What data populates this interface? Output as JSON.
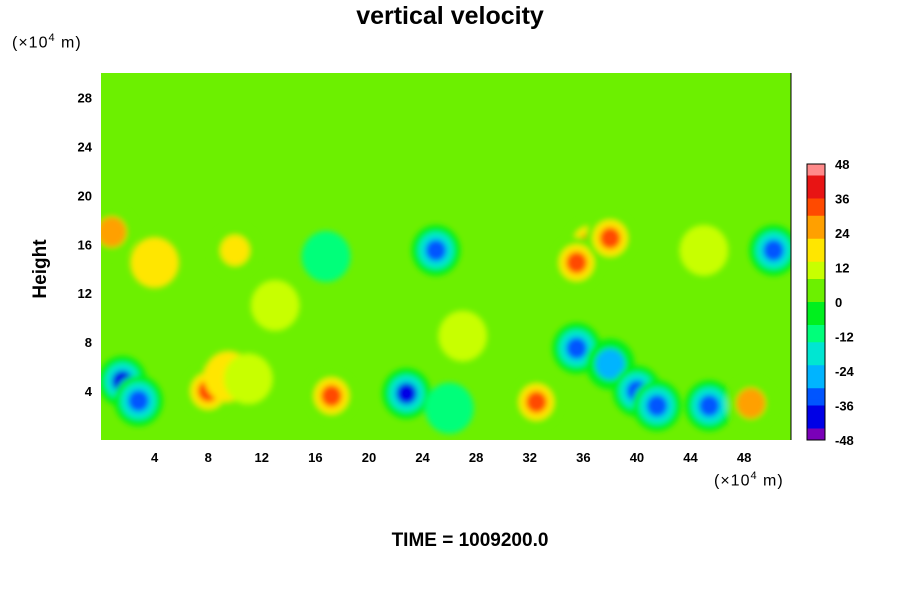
{
  "chart_data": {
    "type": "heatmap",
    "title": "vertical velocity",
    "ylabel": "Height",
    "y_unit_label": "(×10",
    "x_unit_label": "(×10",
    "unit_exp": "4",
    "unit_suffix": " m)",
    "xlim": [
      0,
      51.5
    ],
    "ylim": [
      0,
      30
    ],
    "x_ticks": [
      4,
      8,
      12,
      16,
      20,
      24,
      28,
      32,
      36,
      40,
      44,
      48
    ],
    "y_ticks": [
      4,
      8,
      12,
      16,
      20,
      24,
      28
    ],
    "colorbar": {
      "range": [
        -48,
        48
      ],
      "ticks": [
        48,
        36,
        24,
        12,
        0,
        -12,
        -24,
        -36,
        -48
      ],
      "stops": [
        "#7a00b8",
        "#0000e6",
        "#0055ff",
        "#00b4ff",
        "#00e6d2",
        "#00ff7a",
        "#00f01e",
        "#6cf000",
        "#c8ff00",
        "#ffe600",
        "#ffa000",
        "#ff4a00",
        "#e81414",
        "#ff8a8a"
      ]
    },
    "background_value": 0,
    "features": [
      {
        "x": 1.6,
        "y": 4.8,
        "value": -40
      },
      {
        "x": 2.8,
        "y": 3.2,
        "value": -32
      },
      {
        "x": 8.0,
        "y": 4.0,
        "value": 34
      },
      {
        "x": 9.5,
        "y": 5.2,
        "value": 16
      },
      {
        "x": 11.0,
        "y": 5.0,
        "value": 10
      },
      {
        "x": 17.2,
        "y": 3.6,
        "value": 30
      },
      {
        "x": 22.8,
        "y": 3.8,
        "value": -40
      },
      {
        "x": 26.0,
        "y": 2.6,
        "value": -14
      },
      {
        "x": 32.5,
        "y": 3.1,
        "value": 34
      },
      {
        "x": 35.5,
        "y": 7.5,
        "value": -32
      },
      {
        "x": 38.0,
        "y": 6.2,
        "value": -28
      },
      {
        "x": 40.0,
        "y": 4.0,
        "value": -36
      },
      {
        "x": 41.5,
        "y": 2.8,
        "value": -36
      },
      {
        "x": 45.4,
        "y": 2.8,
        "value": -30
      },
      {
        "x": 48.5,
        "y": 3.0,
        "value": 28
      },
      {
        "x": 36.5,
        "y": 16.0,
        "value": 38
      },
      {
        "x": 35.5,
        "y": 14.5,
        "value": 32
      },
      {
        "x": 38.0,
        "y": 16.5,
        "value": 36
      },
      {
        "x": 0.8,
        "y": 17.0,
        "value": 28
      },
      {
        "x": 10.0,
        "y": 15.5,
        "value": 20
      },
      {
        "x": 25.0,
        "y": 15.5,
        "value": -30
      },
      {
        "x": 50.2,
        "y": 15.5,
        "value": -32
      },
      {
        "x": 16.8,
        "y": 15.0,
        "value": -12
      },
      {
        "x": 4.0,
        "y": 14.5,
        "value": 16
      },
      {
        "x": 45.0,
        "y": 15.5,
        "value": 14
      },
      {
        "x": 13.0,
        "y": 11.0,
        "value": 10
      },
      {
        "x": 27.0,
        "y": 8.5,
        "value": 8
      }
    ],
    "footer": "TIME = 1009200.0"
  }
}
